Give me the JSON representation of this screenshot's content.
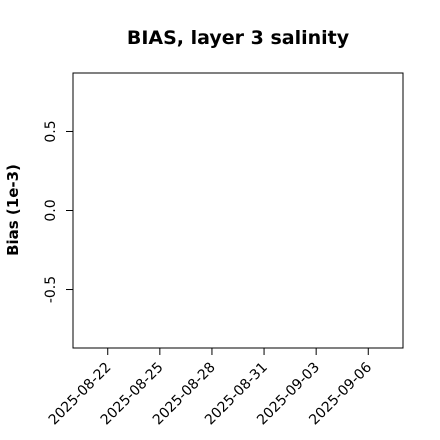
{
  "chart_data": {
    "type": "line",
    "title": "BIAS, layer 3 salinity",
    "xlabel": "",
    "ylabel": "Bias (1e-3)",
    "xlim": [
      "2025-08-20",
      "2025-09-08"
    ],
    "ylim": [
      -0.87,
      0.87
    ],
    "x_ticks": [
      "2025-08-22",
      "2025-08-25",
      "2025-08-28",
      "2025-08-31",
      "2025-09-03",
      "2025-09-06"
    ],
    "x_tick_colors": [
      "#000000",
      "#000000",
      "#228B22",
      "#000000",
      "#000000",
      "#000000"
    ],
    "y_ticks": [
      -0.5,
      0.0,
      0.5
    ],
    "y_tick_labels": [
      "-0.5",
      "0.0",
      "0.5"
    ],
    "grid": false,
    "series": []
  }
}
